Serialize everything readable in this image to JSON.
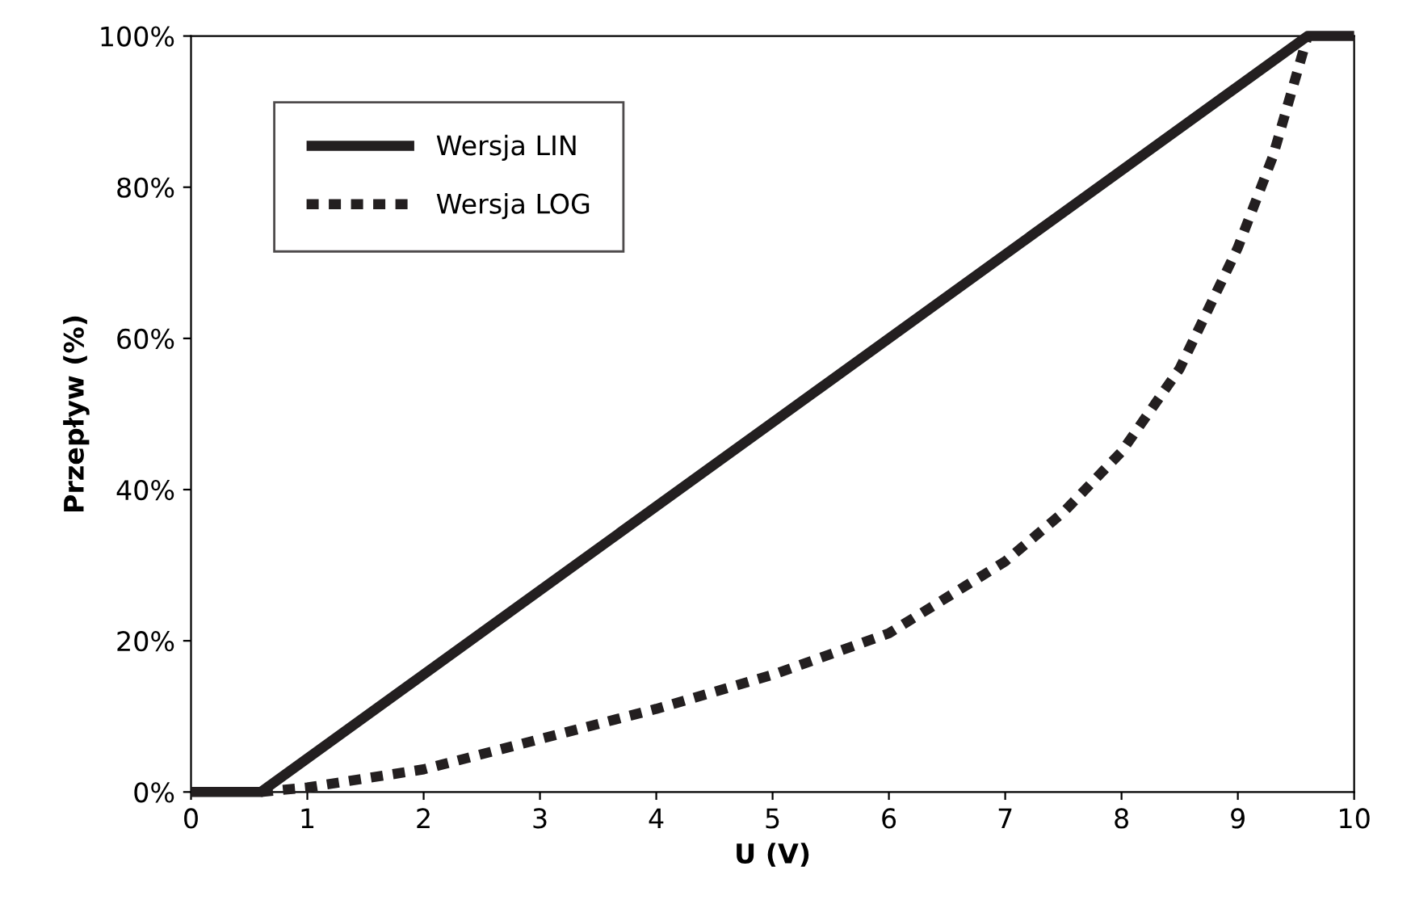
{
  "chart_data": {
    "type": "line",
    "xlabel": "U (V)",
    "ylabel": "Przepływ (%)",
    "xlim": [
      0,
      10
    ],
    "ylim": [
      0,
      100
    ],
    "xticks": [
      0,
      1,
      2,
      3,
      4,
      5,
      6,
      7,
      8,
      9,
      10
    ],
    "yticks": [
      {
        "value": 0,
        "label": "0%"
      },
      {
        "value": 20,
        "label": "20%"
      },
      {
        "value": 40,
        "label": "40%"
      },
      {
        "value": 60,
        "label": "60%"
      },
      {
        "value": 80,
        "label": "80%"
      },
      {
        "value": 100,
        "label": "100%"
      }
    ],
    "grid": false,
    "legend": "top left",
    "marker": "none",
    "series": [
      {
        "name": "Wersja LIN",
        "color": "#231f20",
        "line_style": "solid",
        "x": [
          0,
          0.6,
          9.6,
          10
        ],
        "values": [
          0,
          0,
          100,
          100
        ]
      },
      {
        "name": "Wersja LOG",
        "color": "#231f20",
        "line_style": "dashed",
        "x": [
          0.6,
          1,
          2,
          3,
          4,
          5,
          6,
          7,
          7.5,
          8,
          8.5,
          9,
          9.3,
          9.6
        ],
        "values": [
          0,
          0.6,
          3,
          7,
          11,
          15.5,
          21,
          30.5,
          37,
          45,
          56,
          72,
          84,
          100
        ]
      }
    ]
  }
}
